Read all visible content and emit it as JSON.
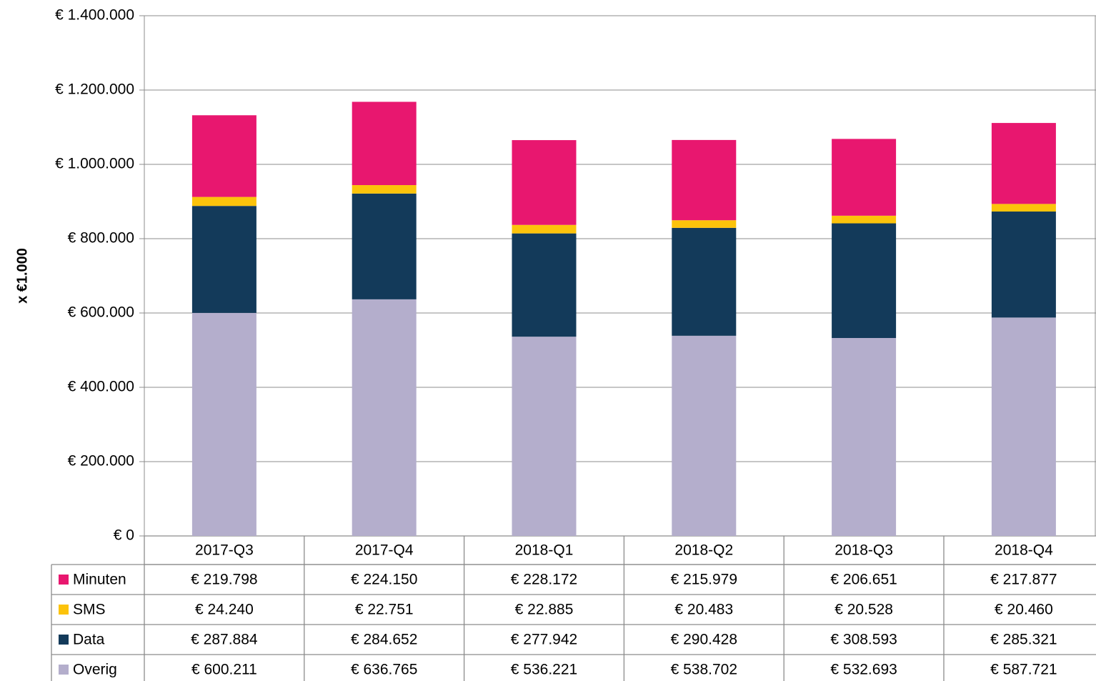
{
  "chart_data": {
    "type": "stacked_bar",
    "y_axis_label": "x €1.000",
    "categories": [
      "2017-Q3",
      "2017-Q4",
      "2018-Q1",
      "2018-Q2",
      "2018-Q3",
      "2018-Q4"
    ],
    "series": [
      {
        "name": "Minuten",
        "color": "#e8176f",
        "values": [
          219798,
          224150,
          228172,
          215979,
          206651,
          217877
        ],
        "value_labels": [
          "€ 219.798",
          "€ 224.150",
          "€ 228.172",
          "€ 215.979",
          "€ 206.651",
          "€ 217.877"
        ]
      },
      {
        "name": "SMS",
        "color": "#fcc30b",
        "values": [
          24240,
          22751,
          22885,
          20483,
          20528,
          20460
        ],
        "value_labels": [
          "€ 24.240",
          "€ 22.751",
          "€ 22.885",
          "€ 20.483",
          "€ 20.528",
          "€ 20.460"
        ]
      },
      {
        "name": "Data",
        "color": "#133a5a",
        "values": [
          287884,
          284652,
          277942,
          290428,
          308593,
          285321
        ],
        "value_labels": [
          "€ 287.884",
          "€ 284.652",
          "€ 277.942",
          "€ 290.428",
          "€ 308.593",
          "€ 285.321"
        ]
      },
      {
        "name": "Overig",
        "color": "#b4aecc",
        "values": [
          600211,
          636765,
          536221,
          538702,
          532693,
          587721
        ],
        "value_labels": [
          "€ 600.211",
          "€ 636.765",
          "€ 536.221",
          "€ 538.702",
          "€ 532.693",
          "€ 587.721"
        ]
      }
    ],
    "ylim": [
      0,
      1400000
    ],
    "yticks": [
      {
        "value": 0,
        "label": "€ 0"
      },
      {
        "value": 200000,
        "label": "€ 200.000"
      },
      {
        "value": 400000,
        "label": "€ 400.000"
      },
      {
        "value": 600000,
        "label": "€ 600.000"
      },
      {
        "value": 800000,
        "label": "€ 800.000"
      },
      {
        "value": 1000000,
        "label": "€ 1.000.000"
      },
      {
        "value": 1200000,
        "label": "€ 1.200.000"
      },
      {
        "value": 1400000,
        "label": "€ 1.400.000"
      }
    ],
    "grid": true
  }
}
